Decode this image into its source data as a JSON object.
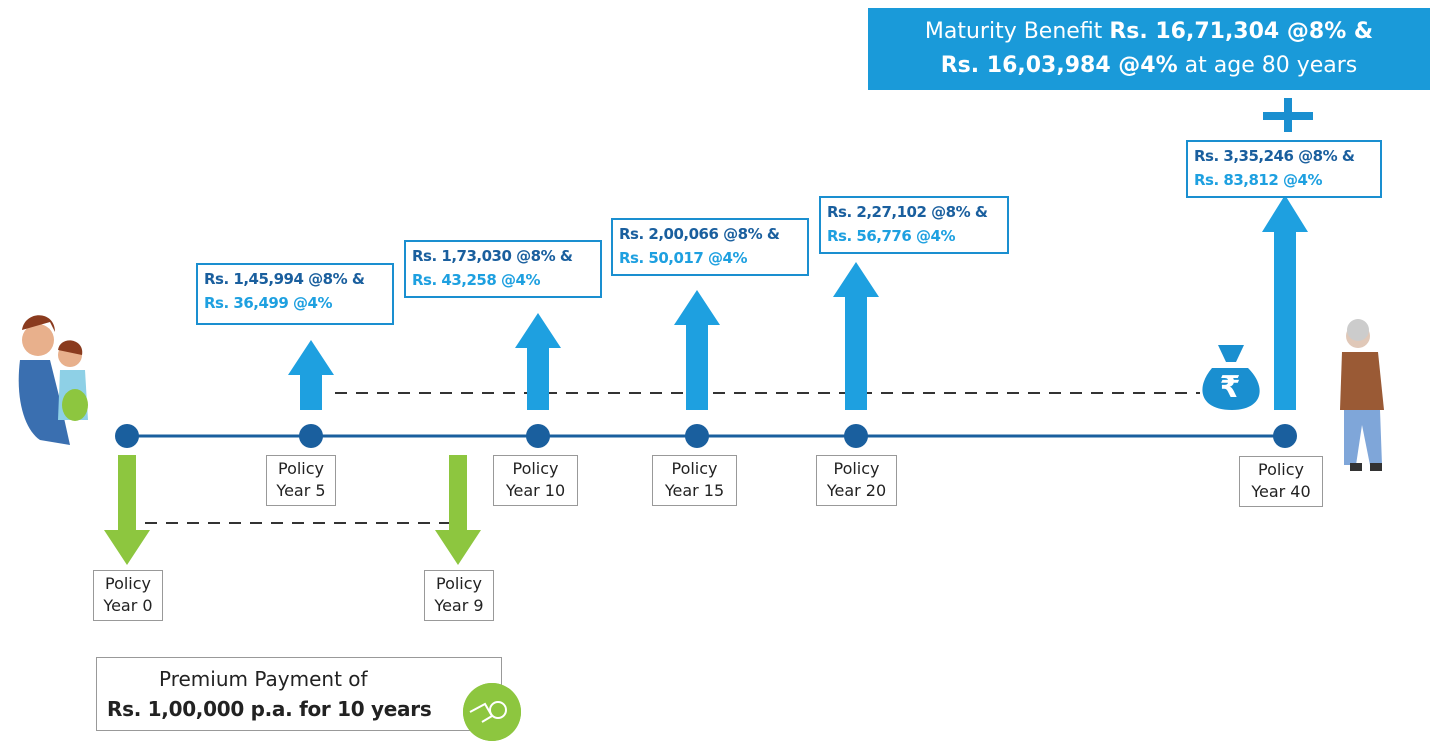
{
  "maturity": {
    "label": "Maturity Benefit",
    "amount_8": "Rs. 16,71,304 @8% &",
    "amount_4": "Rs. 16,03,984 @4%",
    "suffix": "at age 80 years"
  },
  "payouts": [
    {
      "line_8": "Rs. 1,45,994 @8% &",
      "line_4": "Rs. 36,499 @4%"
    },
    {
      "line_8": "Rs. 1,73,030 @8% &",
      "line_4": "Rs. 43,258 @4%"
    },
    {
      "line_8": "Rs. 2,00,066 @8% &",
      "line_4": "Rs. 50,017 @4%"
    },
    {
      "line_8": "Rs. 2,27,102 @8% &",
      "line_4": "Rs. 56,776 @4%"
    },
    {
      "line_8": "Rs. 3,35,246 @8% &",
      "line_4": "Rs. 83,812 @4%"
    }
  ],
  "milestones": [
    {
      "line1": "Policy",
      "line2": "Year 0"
    },
    {
      "line1": "Policy",
      "line2": "Year 5"
    },
    {
      "line1": "Policy",
      "line2": "Year 9"
    },
    {
      "line1": "Policy",
      "line2": "Year 10"
    },
    {
      "line1": "Policy",
      "line2": "Year 15"
    },
    {
      "line1": "Policy",
      "line2": "Year 20"
    },
    {
      "line1": "Policy",
      "line2": "Year 40"
    }
  ],
  "bag_symbol": "₹",
  "premium": {
    "line1": "Premium Payment of",
    "line2": "Rs. 1,00,000 p.a. for 10 years"
  }
}
